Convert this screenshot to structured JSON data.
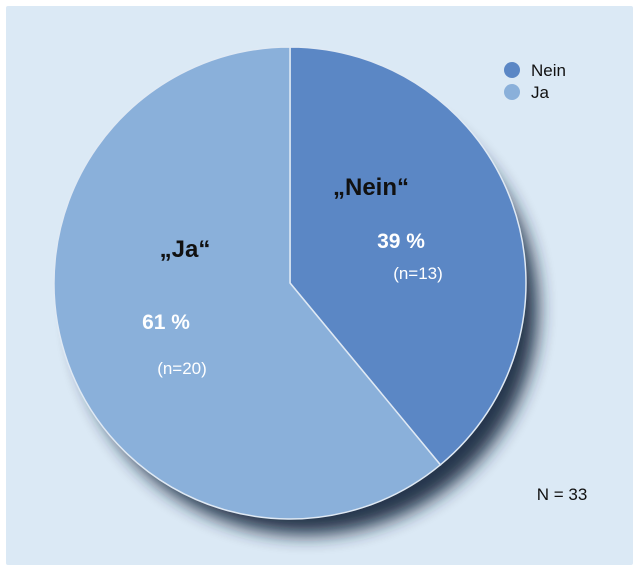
{
  "chart_data": {
    "type": "pie",
    "slices": [
      {
        "category": "Nein",
        "label": "„Nein“",
        "percent": 39,
        "percent_label": "39 %",
        "count": 13,
        "count_label": "(n=13)"
      },
      {
        "category": "Ja",
        "label": "„Ja“",
        "percent": 61,
        "percent_label": "61 %",
        "count": 20,
        "count_label": "(n=20)"
      }
    ],
    "legend": {
      "placement": "top-right",
      "entries": [
        "Nein",
        "Ja"
      ]
    },
    "total_label": "N = 33"
  },
  "colors": {
    "background": "#dbe9f5",
    "nein": "#5b87c5",
    "ja": "#8ab0da",
    "shadow": "#15263d",
    "text_dark": "#111111",
    "text_light": "#ffffff"
  }
}
